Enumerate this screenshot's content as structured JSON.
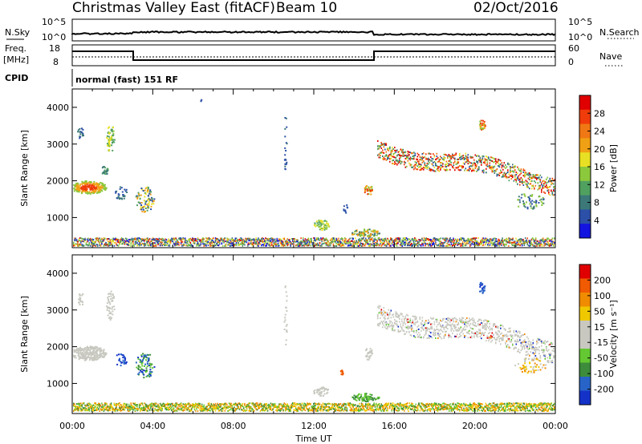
{
  "header": {
    "title": "Christmas Valley East (fitACF)",
    "beam": "Beam 10",
    "date": "02/Oct/2016"
  },
  "panels": {
    "nsky_label": "N.Sky",
    "nsky_ticks": [
      "10^5",
      "10^0"
    ],
    "nsearch_label": "N.Search",
    "nsearch_ticks": [
      "10^5",
      "10^0"
    ],
    "freq_label": "Freq.",
    "freq_unit": "[MHz]",
    "freq_ticks": [
      "18",
      "8"
    ],
    "nave_label": "Nave",
    "nave_ticks": [
      "60",
      "0"
    ],
    "cpid_label": "CPID",
    "cpid_text": "normal (fast) 151 RF"
  },
  "colors": {
    "power_scale": [
      "#1414e0",
      "#2c50a8",
      "#3c7878",
      "#50a060",
      "#8cc83c",
      "#e8e024",
      "#f0a014",
      "#f07814",
      "#f03c0a",
      "#e00000"
    ],
    "velocity_scale": [
      "#1432c8",
      "#2864c8",
      "#3c8c3c",
      "#64c832",
      "#c8c8c0",
      "#c8c8c0",
      "#f0c800",
      "#f08c00",
      "#f05a00",
      "#e00000"
    ],
    "gray_scatter": "#c8c8c0"
  },
  "chart_data": [
    {
      "type": "heatmap",
      "title": "Power",
      "ylabel": "Slant Range [km]",
      "xlabel": "Time UT",
      "x_ticks": [
        "00:00",
        "04:00",
        "08:00",
        "12:00",
        "16:00",
        "20:00",
        "00:00"
      ],
      "y_ticks": [
        1000,
        2000,
        3000,
        4000
      ],
      "ylim": [
        180,
        4500
      ],
      "xlim_hours": [
        0,
        24
      ],
      "colorbar": {
        "label": "Power [dB]",
        "range": [
          0,
          32
        ],
        "ticks": [
          "4",
          "8",
          "12",
          "16",
          "20",
          "24",
          "28"
        ]
      }
    },
    {
      "type": "heatmap",
      "title": "Velocity",
      "ylabel": "Slant Range [km]",
      "xlabel": "Time UT",
      "x_ticks": [
        "00:00",
        "04:00",
        "08:00",
        "12:00",
        "16:00",
        "20:00",
        "00:00"
      ],
      "y_ticks": [
        1000,
        2000,
        3000,
        4000
      ],
      "ylim": [
        180,
        4500
      ],
      "xlim_hours": [
        0,
        24
      ],
      "colorbar": {
        "label": "Velocity [m s⁻¹]",
        "ticks": [
          "200",
          "100",
          "50",
          "15",
          "-15",
          "-50",
          "-100",
          "-200"
        ]
      }
    }
  ],
  "xaxis_label": "Time UT"
}
